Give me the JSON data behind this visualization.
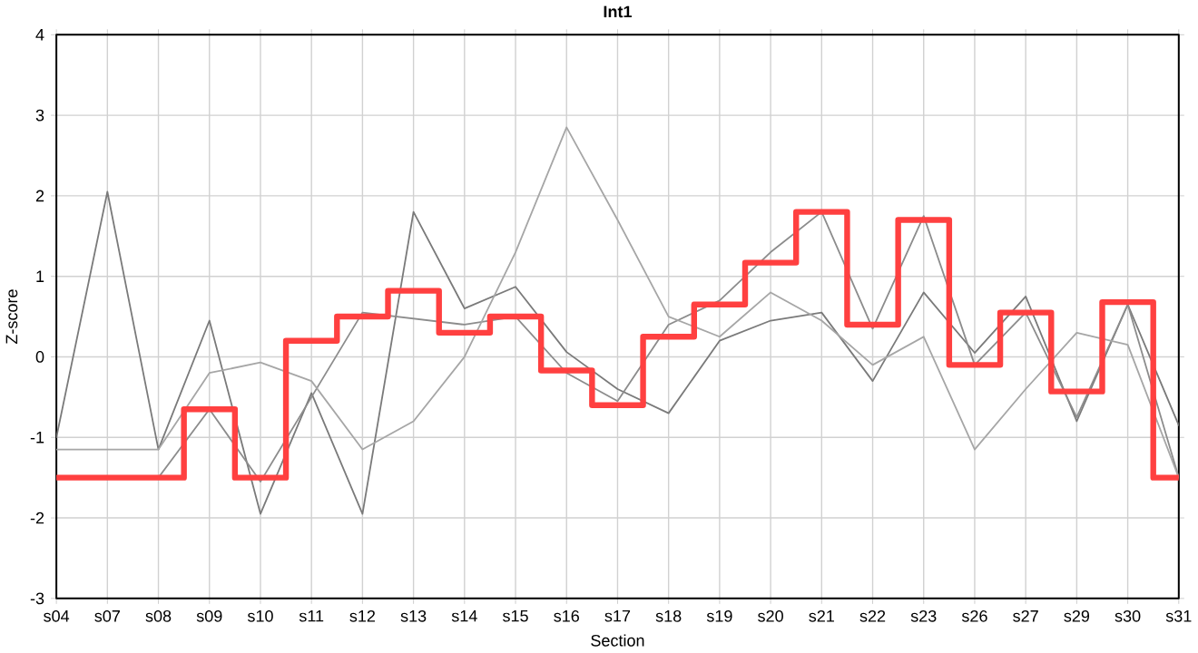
{
  "chart_data": {
    "type": "line",
    "title": "Int1",
    "xlabel": "Section",
    "ylabel": "Z-score",
    "categories": [
      "s04",
      "s07",
      "s08",
      "s09",
      "s10",
      "s11",
      "s12",
      "s13",
      "s14",
      "s15",
      "s16",
      "s17",
      "s18",
      "s19",
      "s20",
      "s21",
      "s22",
      "s23",
      "s26",
      "s27",
      "s29",
      "s30",
      "s31"
    ],
    "ylim": [
      -3,
      4
    ],
    "yticks": [
      -3,
      -2,
      -1,
      0,
      1,
      2,
      3,
      4
    ],
    "grid": true,
    "series": [
      {
        "color": "#7a7a7a",
        "values": [
          -1.0,
          2.05,
          -1.15,
          0.45,
          -1.95,
          -0.45,
          -1.95,
          1.8,
          0.6,
          0.87,
          0.06,
          -0.4,
          -0.7,
          0.2,
          0.45,
          0.55,
          -0.3,
          0.8,
          0.05,
          0.75,
          -0.8,
          0.65,
          -0.85
        ]
      },
      {
        "color": "#8c8c8c",
        "values": [
          null,
          null,
          -1.5,
          -0.65,
          -1.55,
          -0.5,
          0.55,
          null,
          0.4,
          0.5,
          -0.2,
          -0.55,
          0.4,
          0.7,
          1.3,
          1.8,
          0.35,
          1.75,
          -0.1,
          0.55,
          -0.75,
          0.65,
          -1.5
        ]
      },
      {
        "color": "#a6a6a6",
        "values": [
          -1.15,
          -1.15,
          -1.15,
          -0.2,
          -0.07,
          -0.3,
          -1.15,
          -0.8,
          0.0,
          1.3,
          2.85,
          1.7,
          0.5,
          0.25,
          0.8,
          0.45,
          -0.1,
          0.25,
          -1.15,
          -0.4,
          0.3,
          0.15,
          -1.5
        ]
      },
      {
        "type": "step",
        "color": "#ff4040",
        "values": [
          -1.5,
          -1.5,
          -1.5,
          -0.65,
          -1.5,
          0.2,
          0.5,
          0.82,
          0.3,
          0.5,
          -0.17,
          -0.6,
          0.25,
          0.65,
          1.17,
          1.8,
          0.4,
          1.7,
          -0.1,
          0.55,
          -0.43,
          0.68,
          -1.5
        ]
      }
    ]
  }
}
